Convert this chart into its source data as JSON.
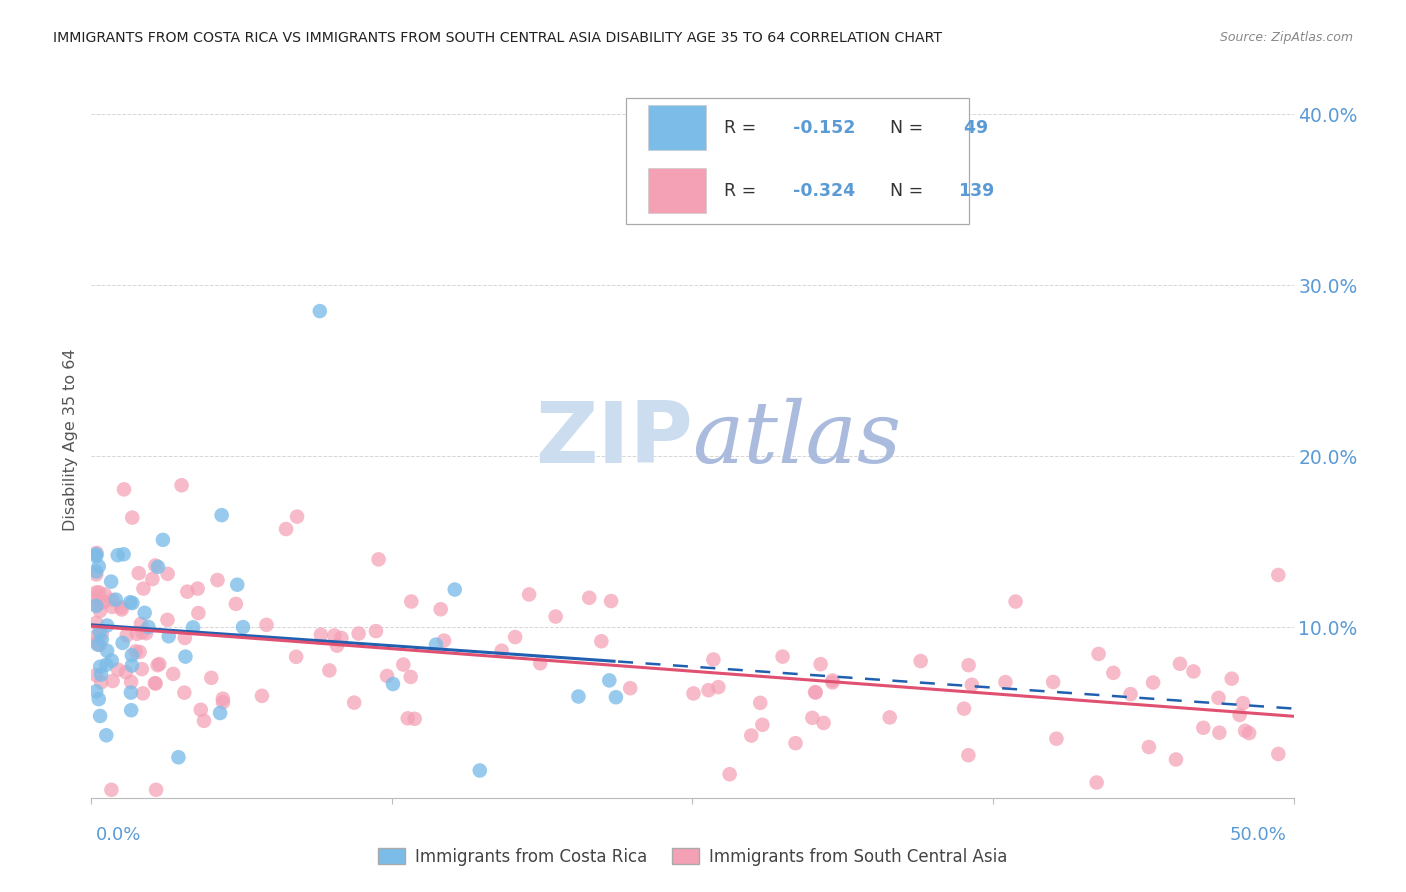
{
  "title": "IMMIGRANTS FROM COSTA RICA VS IMMIGRANTS FROM SOUTH CENTRAL ASIA DISABILITY AGE 35 TO 64 CORRELATION CHART",
  "source": "Source: ZipAtlas.com",
  "ylabel": "Disability Age 35 to 64",
  "xlim": [
    0.0,
    0.5
  ],
  "ylim": [
    0.0,
    0.42
  ],
  "yticks": [
    0.0,
    0.1,
    0.2,
    0.3,
    0.4
  ],
  "ytick_labels": [
    "",
    "10.0%",
    "20.0%",
    "30.0%",
    "40.0%"
  ],
  "color_blue": "#7bbce8",
  "color_pink": "#f4a0b5",
  "color_trend_blue": "#2060b0",
  "color_trend_pink": "#e05070",
  "color_axis_labels": "#5b9bd5",
  "watermark_zip_color": "#ccddf0",
  "watermark_atlas_color": "#aabbdd",
  "background_color": "#ffffff",
  "legend_box_color": "#5b9bd5",
  "seed_cr": 42,
  "seed_sa": 17
}
